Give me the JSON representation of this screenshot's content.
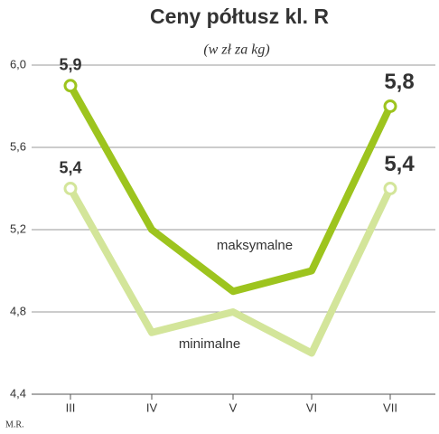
{
  "chart_data": {
    "type": "line",
    "title": "Ceny półtusz kl. R",
    "subtitle": "(w zł za kg)",
    "credit": "M.R.",
    "categories": [
      "III",
      "IV",
      "V",
      "VI",
      "VII"
    ],
    "series": [
      {
        "name": "maksymalne",
        "color": "#9dc41e",
        "values": [
          5.9,
          5.2,
          4.9,
          5.0,
          5.8
        ],
        "value_labels": [
          "5,9",
          null,
          null,
          null,
          "5,8"
        ]
      },
      {
        "name": "minimalne",
        "color": "#d3e59a",
        "values": [
          5.4,
          4.7,
          4.8,
          4.6,
          5.4
        ],
        "value_labels": [
          "5,4",
          null,
          null,
          null,
          "5,4"
        ]
      }
    ],
    "ylim": [
      4.4,
      6.0
    ],
    "yticks": [
      {
        "value": 4.4,
        "label": "4,4"
      },
      {
        "value": 4.8,
        "label": "4,8"
      },
      {
        "value": 5.2,
        "label": "5,2"
      },
      {
        "value": 5.6,
        "label": "5,6"
      },
      {
        "value": 6.0,
        "label": "6,0"
      }
    ],
    "grid": true
  }
}
